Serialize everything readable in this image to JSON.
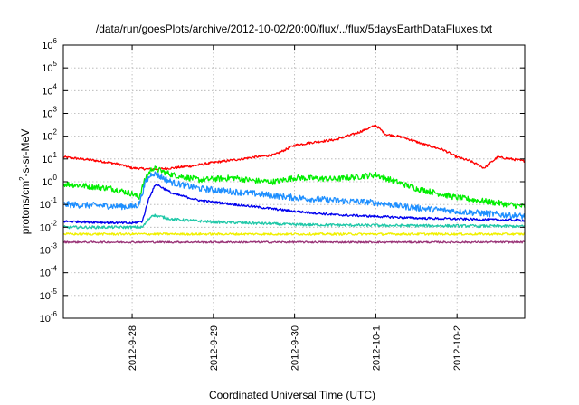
{
  "chart_data": {
    "type": "line",
    "title": "/data/run/goesPlots/archive/2012-10-02/20:00/flux/../flux/5daysEarthDataFluxes.txt",
    "xlabel": "Coordinated Universal Time (UTC)",
    "ylabel": "protons/cm2-s-sr-MeV",
    "ylabel_main": "protons/cm",
    "ylabel_sup": "2",
    "ylabel_rest": "-s-sr-MeV",
    "yscale": "log",
    "ylim_exponent": [
      -6,
      6
    ],
    "y_tick_base": "10",
    "y_tick_exponents": [
      "-6",
      "-5",
      "-4",
      "-3",
      "-2",
      "-1",
      "0",
      "1",
      "2",
      "3",
      "4",
      "5",
      "6"
    ],
    "xlim_days": [
      "2012-09-27T03:40",
      "2012-10-02T20:00"
    ],
    "x_ticks": [
      "2012-9-28",
      "2012-9-29",
      "2012-9-30",
      "2012-10-1",
      "2012-10-2"
    ],
    "grid": true,
    "legend": "none",
    "series_order_back_to_front": [
      "red",
      "green",
      "lightblue",
      "cyan",
      "blue",
      "yellow",
      "purple"
    ],
    "series": [
      {
        "color": "#ff0000",
        "noise_log": 0.05,
        "points": [
          [
            "2012-09-27T04:00",
            12
          ],
          [
            "2012-09-27T12:00",
            9
          ],
          [
            "2012-09-27T20:00",
            6
          ],
          [
            "2012-09-28T00:00",
            4
          ],
          [
            "2012-09-28T06:00",
            3.5
          ],
          [
            "2012-09-28T12:00",
            4
          ],
          [
            "2012-09-28T18:00",
            5
          ],
          [
            "2012-09-29T00:00",
            7
          ],
          [
            "2012-09-29T06:00",
            9
          ],
          [
            "2012-09-29T12:00",
            12
          ],
          [
            "2012-09-29T18:00",
            15
          ],
          [
            "2012-09-30T00:00",
            40
          ],
          [
            "2012-09-30T06:00",
            55
          ],
          [
            "2012-09-30T12:00",
            70
          ],
          [
            "2012-09-30T18:00",
            130
          ],
          [
            "2012-10-01T00:00",
            300
          ],
          [
            "2012-10-01T03:00",
            120
          ],
          [
            "2012-10-01T08:00",
            90
          ],
          [
            "2012-10-01T14:00",
            45
          ],
          [
            "2012-10-01T20:00",
            25
          ],
          [
            "2012-10-02T00:00",
            12
          ],
          [
            "2012-10-02T04:00",
            8
          ],
          [
            "2012-10-02T08:00",
            4
          ],
          [
            "2012-10-02T12:00",
            12
          ],
          [
            "2012-10-02T16:00",
            10
          ],
          [
            "2012-10-02T20:00",
            8
          ]
        ]
      },
      {
        "color": "#00ee00",
        "noise_log": 0.13,
        "points": [
          [
            "2012-09-27T04:00",
            0.8
          ],
          [
            "2012-09-27T18:00",
            0.5
          ],
          [
            "2012-09-28T00:00",
            0.3
          ],
          [
            "2012-09-28T02:00",
            0.2
          ],
          [
            "2012-09-28T04:00",
            1.5
          ],
          [
            "2012-09-28T06:00",
            4
          ],
          [
            "2012-09-28T12:00",
            2
          ],
          [
            "2012-09-28T20:00",
            1.2
          ],
          [
            "2012-09-29T06:00",
            1.5
          ],
          [
            "2012-09-29T12:00",
            1.1
          ],
          [
            "2012-09-29T18:00",
            1.0
          ],
          [
            "2012-09-30T00:00",
            1.5
          ],
          [
            "2012-09-30T12:00",
            1.3
          ],
          [
            "2012-10-01T00:00",
            2
          ],
          [
            "2012-10-01T06:00",
            1.0
          ],
          [
            "2012-10-01T12:00",
            0.5
          ],
          [
            "2012-10-02T00:00",
            0.2
          ],
          [
            "2012-10-02T20:00",
            0.08
          ]
        ]
      },
      {
        "color": "#1e8fff",
        "noise_log": 0.14,
        "points": [
          [
            "2012-09-27T04:00",
            0.1
          ],
          [
            "2012-09-28T00:00",
            0.08
          ],
          [
            "2012-09-28T02:00",
            0.1
          ],
          [
            "2012-09-28T04:00",
            1.0
          ],
          [
            "2012-09-28T06:00",
            2.5
          ],
          [
            "2012-09-28T12:00",
            0.9
          ],
          [
            "2012-09-28T20:00",
            0.5
          ],
          [
            "2012-09-29T12:00",
            0.3
          ],
          [
            "2012-09-30T00:00",
            0.2
          ],
          [
            "2012-09-30T12:00",
            0.15
          ],
          [
            "2012-10-01T00:00",
            0.12
          ],
          [
            "2012-10-01T12:00",
            0.07
          ],
          [
            "2012-10-02T00:00",
            0.05
          ],
          [
            "2012-10-02T20:00",
            0.03
          ]
        ]
      },
      {
        "color": "#20c8a8",
        "noise_log": 0.06,
        "points": [
          [
            "2012-09-27T04:00",
            0.01
          ],
          [
            "2012-09-28T00:00",
            0.01
          ],
          [
            "2012-09-28T03:00",
            0.01
          ],
          [
            "2012-09-28T06:00",
            0.035
          ],
          [
            "2012-09-28T12:00",
            0.022
          ],
          [
            "2012-09-29T00:00",
            0.017
          ],
          [
            "2012-09-29T12:00",
            0.015
          ],
          [
            "2012-09-30T00:00",
            0.013
          ],
          [
            "2012-10-01T00:00",
            0.012
          ],
          [
            "2012-10-02T20:00",
            0.011
          ]
        ]
      },
      {
        "color": "#0000ee",
        "noise_log": 0.05,
        "points": [
          [
            "2012-09-27T04:00",
            0.018
          ],
          [
            "2012-09-28T00:00",
            0.015
          ],
          [
            "2012-09-28T03:00",
            0.018
          ],
          [
            "2012-09-28T05:00",
            0.2
          ],
          [
            "2012-09-28T07:00",
            0.8
          ],
          [
            "2012-09-28T12:00",
            0.3
          ],
          [
            "2012-09-28T20:00",
            0.15
          ],
          [
            "2012-09-29T12:00",
            0.08
          ],
          [
            "2012-09-30T00:00",
            0.05
          ],
          [
            "2012-09-30T12:00",
            0.035
          ],
          [
            "2012-10-01T00:00",
            0.03
          ],
          [
            "2012-10-01T12:00",
            0.025
          ],
          [
            "2012-10-02T20:00",
            0.02
          ]
        ]
      },
      {
        "color": "#f0f000",
        "noise_log": 0.05,
        "points": [
          [
            "2012-09-27T04:00",
            0.005
          ],
          [
            "2012-10-02T20:00",
            0.005
          ]
        ]
      },
      {
        "color": "#993377",
        "noise_log": 0.04,
        "points": [
          [
            "2012-09-27T04:00",
            0.0022
          ],
          [
            "2012-10-02T20:00",
            0.0022
          ]
        ]
      }
    ]
  }
}
